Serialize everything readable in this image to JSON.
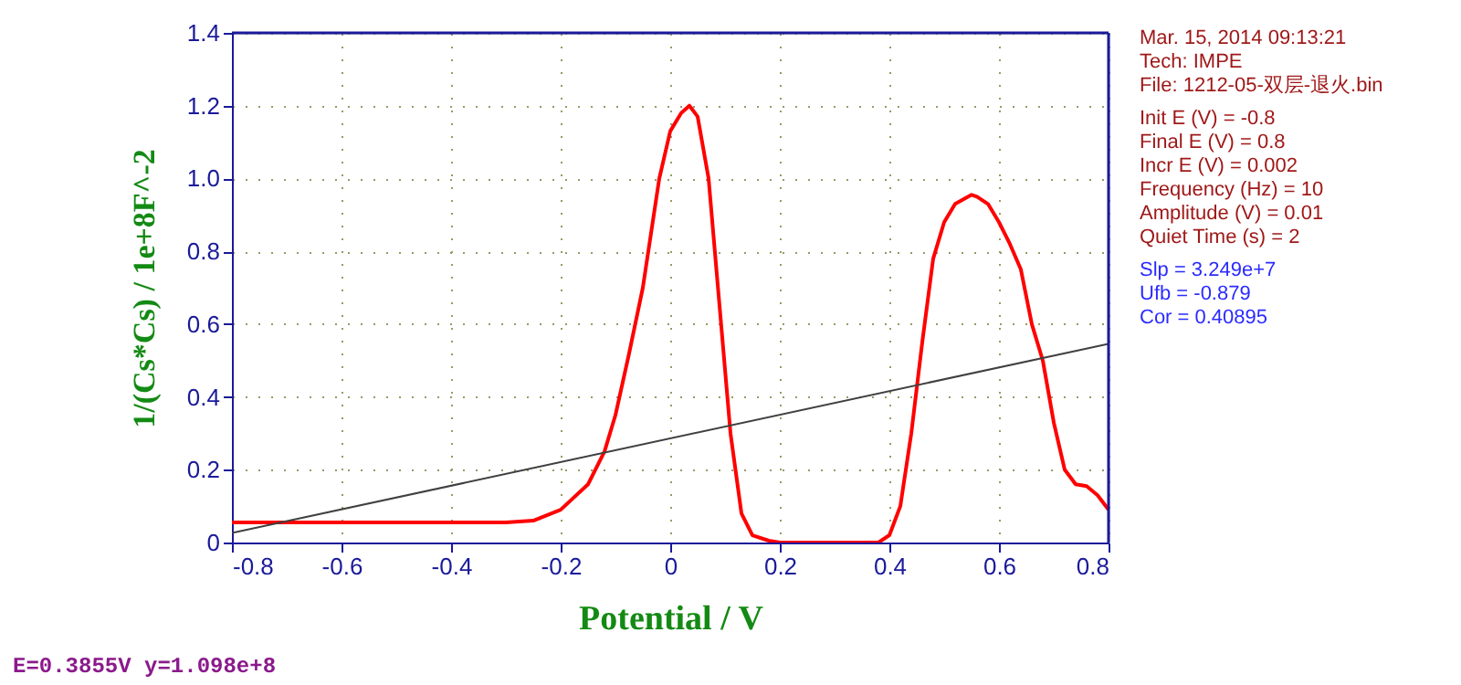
{
  "chart_data": {
    "type": "line",
    "xlabel": "Potential / V",
    "ylabel": "1/(Cs*Cs) / 1e+8F^-2",
    "xlim": [
      -0.8,
      0.8
    ],
    "xticks": [
      -0.8,
      -0.6,
      -0.4,
      -0.2,
      0,
      0.2,
      0.4,
      0.6,
      0.8
    ],
    "ylim": [
      0,
      1.4
    ],
    "yticks": [
      0,
      0.2,
      0.4,
      0.6,
      0.8,
      {
        "value": 1.0,
        "label": "1.0"
      },
      1.2,
      1.4
    ],
    "grid": true,
    "marker": "none",
    "line_style": "solid",
    "series": [
      {
        "color": "#ff0000",
        "x": [
          -0.8,
          -0.7,
          -0.6,
          -0.5,
          -0.4,
          -0.3,
          -0.25,
          -0.2,
          -0.15,
          -0.12,
          -0.1,
          -0.075,
          -0.05,
          -0.02,
          0.0,
          0.02,
          0.035,
          0.05,
          0.07,
          0.09,
          0.11,
          0.13,
          0.15,
          0.18,
          0.2,
          0.3,
          0.38,
          0.4,
          0.42,
          0.44,
          0.46,
          0.48,
          0.5,
          0.52,
          0.55,
          0.56,
          0.58,
          0.6,
          0.62,
          0.64,
          0.66,
          0.68,
          0.7,
          0.72,
          0.74,
          0.76,
          0.78,
          0.8
        ],
        "values": [
          0.055,
          0.055,
          0.055,
          0.055,
          0.055,
          0.055,
          0.06,
          0.09,
          0.16,
          0.25,
          0.35,
          0.52,
          0.7,
          1.0,
          1.13,
          1.18,
          1.2,
          1.17,
          1.0,
          0.65,
          0.3,
          0.08,
          0.02,
          0.005,
          0.0,
          0.0,
          0.0,
          0.02,
          0.1,
          0.3,
          0.55,
          0.78,
          0.88,
          0.93,
          0.955,
          0.95,
          0.93,
          0.88,
          0.82,
          0.75,
          0.6,
          0.5,
          0.33,
          0.2,
          0.16,
          0.155,
          0.13,
          0.09
        ]
      },
      {
        "color": "#404040",
        "x": [
          -0.8,
          0.8
        ],
        "values": [
          0.026,
          0.546
        ]
      }
    ],
    "annotations": [
      "Mar. 15, 2014   09:13:21",
      "Tech: IMPE",
      "File: 1212-05-双层-退火.bin",
      "Init E (V) = -0.8",
      "Final E (V) = 0.8",
      "Incr E (V) = 0.002",
      "Frequency (Hz) = 10",
      "Amplitude (V) = 0.01",
      "Quiet Time (s) = 2",
      "Slp = 3.249e+7",
      "Ufb = -0.879",
      "Cor = 0.40895",
      "E=0.3855V  y=1.098e+8"
    ]
  }
}
